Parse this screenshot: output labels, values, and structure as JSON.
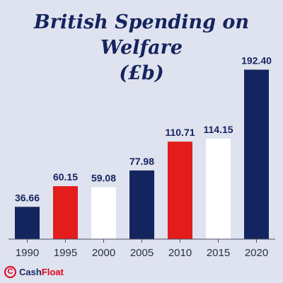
{
  "title_lines": [
    "British Spending on Welfare",
    "(£b)"
  ],
  "brand": {
    "name_part1": "Cash",
    "name_part2": "Float",
    "mark_letter": "C",
    "icon": "cashfloat-logo-icon"
  },
  "colors": {
    "background": "#dfe2ef",
    "navy": "#14245e",
    "red": "#e31c1c",
    "white": "#ffffff",
    "axis": "#4a4f66",
    "tick_text": "#2b2f45"
  },
  "chart_data": {
    "type": "bar",
    "categories": [
      "1990",
      "1995",
      "2000",
      "2005",
      "2010",
      "2015",
      "2020"
    ],
    "values": [
      36.66,
      60.15,
      59.08,
      77.98,
      110.71,
      114.15,
      192.4
    ],
    "value_labels": [
      "36.66",
      "60.15",
      "59.08",
      "77.98",
      "110.71",
      "114.15",
      "192.40"
    ],
    "bar_colors": [
      "#14245e",
      "#e31c1c",
      "#ffffff",
      "#14245e",
      "#e31c1c",
      "#ffffff",
      "#14245e"
    ],
    "title": "British Spending on Welfare (£b)",
    "xlabel": "",
    "ylabel": "",
    "ylim": [
      0,
      200
    ],
    "grid": false,
    "legend": "none",
    "y_axis_visible": false
  }
}
